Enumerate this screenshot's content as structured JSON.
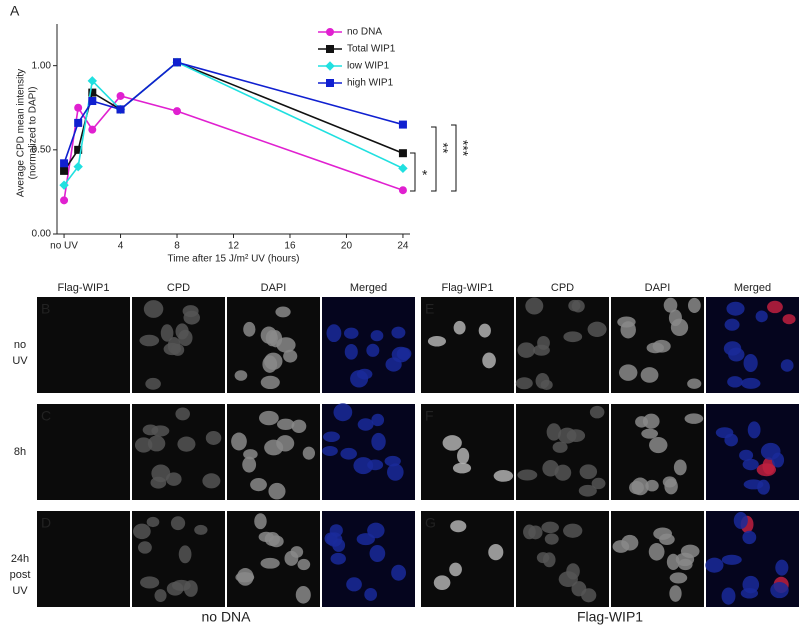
{
  "panel_label": "A",
  "chart_data": {
    "type": "line",
    "xlabel": "Time after 15 J/m² UV (hours)",
    "ylabel": [
      "Average CPD mean intensity",
      "(normalized to DAPI)"
    ],
    "x": [
      0,
      1,
      2,
      4,
      8,
      24
    ],
    "series": [
      {
        "name": "no DNA",
        "color": "#e020d0",
        "marker": "circle",
        "values": [
          0.2,
          0.75,
          0.62,
          0.82,
          0.73,
          0.26
        ]
      },
      {
        "name": "Total WIP1",
        "color": "#111111",
        "marker": "square",
        "values": [
          0.375,
          0.5,
          0.84,
          0.74,
          1.02,
          0.48
        ]
      },
      {
        "name": "low WIP1",
        "color": "#20e0e0",
        "marker": "diamond",
        "values": [
          0.29,
          0.4,
          0.91,
          0.74,
          1.02,
          0.39
        ]
      },
      {
        "name": "high WIP1",
        "color": "#1020d0",
        "marker": "square",
        "values": [
          0.42,
          0.66,
          0.79,
          0.74,
          1.02,
          0.65
        ]
      }
    ],
    "xlim": [
      -0.5,
      24.5
    ],
    "xticks": [
      {
        "value": 0,
        "label": "no UV"
      },
      4,
      8,
      12,
      16,
      20,
      24
    ],
    "ylim": [
      0,
      1.2
    ],
    "yticks": [
      {
        "value": 0,
        "label": "0.00"
      },
      {
        "value": 0.5,
        "label": "0.50"
      },
      {
        "value": 1,
        "label": "1.00"
      }
    ],
    "annotations": [
      "*",
      "**",
      "***"
    ]
  },
  "micrographs": {
    "columns": [
      "Flag-WIP1",
      "CPD",
      "DAPI",
      "Merged"
    ],
    "row_labels": [
      "no UV",
      "8h",
      "24h post UV"
    ],
    "groups": [
      {
        "label": "no DNA",
        "letters": [
          "B",
          "C",
          "D"
        ]
      },
      {
        "label": "Flag-WIP1",
        "letters": [
          "E",
          "F",
          "G"
        ]
      }
    ]
  }
}
